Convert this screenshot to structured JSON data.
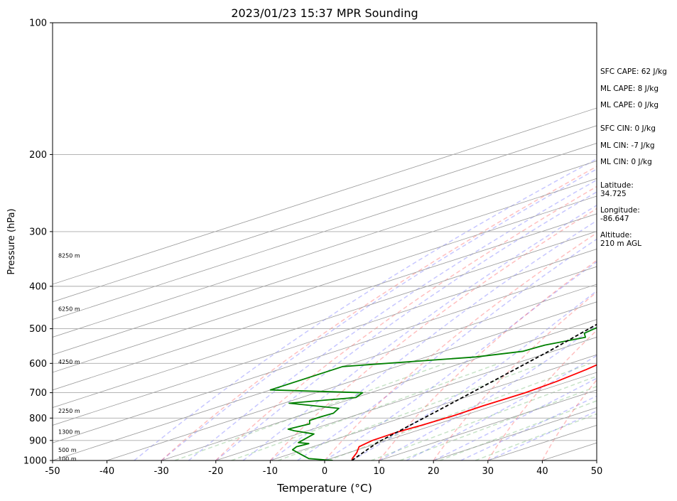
{
  "chart_data": {
    "type": "line",
    "title": "2023/01/23 15:37 MPR Sounding",
    "xlabel": "Temperature (°C)",
    "ylabel": "Pressure (hPa)",
    "xlim": [
      -50,
      50
    ],
    "ylim": [
      1000,
      100
    ],
    "y_scale": "log",
    "x_ticks": [
      -50,
      -40,
      -30,
      -20,
      -10,
      0,
      10,
      20,
      30,
      40,
      50
    ],
    "y_ticks": [
      100,
      200,
      300,
      400,
      500,
      600,
      700,
      800,
      900,
      1000
    ],
    "grid": true,
    "series": [
      {
        "role": "temperature",
        "color": "#ff0000",
        "points": [
          [
            5,
            1000
          ],
          [
            4,
            990
          ],
          [
            1.5,
            960
          ],
          [
            -1.5,
            930
          ],
          [
            -2.6,
            900
          ],
          [
            -2.8,
            860
          ],
          [
            -2.2,
            830
          ],
          [
            -1.7,
            790
          ],
          [
            -1.9,
            750
          ],
          [
            -1.6,
            700
          ],
          [
            -2.2,
            660
          ],
          [
            -3.5,
            620
          ],
          [
            -5.5,
            580
          ],
          [
            -8,
            530
          ],
          [
            -10.5,
            490
          ],
          [
            -13.5,
            450
          ],
          [
            -15.5,
            415
          ],
          [
            -17.5,
            380
          ],
          [
            -19.4,
            345
          ],
          [
            -20.9,
            315
          ],
          [
            -21.6,
            290
          ],
          [
            -21.8,
            265
          ],
          [
            -21.8,
            255
          ]
        ]
      },
      {
        "role": "dewpoint",
        "color": "#008000",
        "points": [
          [
            1.5,
            1000
          ],
          [
            -4,
            990
          ],
          [
            -7.5,
            970
          ],
          [
            -12,
            945
          ],
          [
            -13,
            930
          ],
          [
            -12.5,
            915
          ],
          [
            -15,
            910
          ],
          [
            -17,
            870
          ],
          [
            -22.5,
            855
          ],
          [
            -24.5,
            848
          ],
          [
            -23.5,
            825
          ],
          [
            -25.5,
            810
          ],
          [
            -25.5,
            795
          ],
          [
            -25.2,
            780
          ],
          [
            -27,
            760
          ],
          [
            -39,
            740
          ],
          [
            -30,
            718
          ],
          [
            -31.5,
            700
          ],
          [
            -50,
            690
          ],
          [
            -50,
            610
          ],
          [
            -31,
            580
          ],
          [
            -25.5,
            563
          ],
          [
            -25,
            545
          ],
          [
            -22,
            523
          ],
          [
            -24.5,
            512
          ],
          [
            -25.5,
            495
          ],
          [
            -19.5,
            475
          ],
          [
            -19,
            460
          ],
          [
            -20,
            448
          ],
          [
            -21.5,
            443
          ],
          [
            -19.5,
            425
          ],
          [
            -21.5,
            400
          ],
          [
            -22,
            385
          ],
          [
            -22.5,
            370
          ],
          [
            -27,
            352
          ],
          [
            -31,
            343
          ],
          [
            -31,
            327
          ],
          [
            -32.5,
            315
          ],
          [
            -37,
            300
          ],
          [
            -44.5,
            285
          ],
          [
            -40.5,
            275
          ],
          [
            -35,
            267
          ],
          [
            -39,
            260
          ]
        ]
      },
      {
        "role": "parcel",
        "color": "#000000",
        "points": [
          [
            5,
            1000
          ],
          [
            -0.5,
            910
          ],
          [
            -8,
            760
          ],
          [
            -14,
            660
          ],
          [
            -21,
            560
          ],
          [
            -29,
            470
          ],
          [
            -37,
            395
          ],
          [
            -44,
            325
          ],
          [
            -49.5,
            260
          ]
        ]
      }
    ],
    "height_labels": [
      {
        "label": "100 m",
        "pressure": 990
      },
      {
        "label": "500 m",
        "pressure": 945
      },
      {
        "label": "1300 m",
        "pressure": 860
      },
      {
        "label": "2250 m",
        "pressure": 770
      },
      {
        "label": "4250 m",
        "pressure": 595
      },
      {
        "label": "6250 m",
        "pressure": 450
      },
      {
        "label": "8250 m",
        "pressure": 340
      }
    ],
    "dry_adiabat_thetas_c": [
      -30,
      -20,
      -10,
      0,
      10,
      20,
      30,
      40,
      50,
      60,
      70,
      80,
      90,
      100,
      110,
      120,
      130,
      140,
      150,
      160
    ],
    "moist_adiabat_temps_c": [
      -35,
      -30,
      -25,
      -20,
      -15,
      -10,
      -5,
      0,
      5,
      10,
      15,
      20,
      25,
      30
    ],
    "mixing_ratios_gkg": [
      0.4,
      1,
      2,
      4,
      7,
      10,
      16,
      24
    ],
    "colors": {
      "isotherm": "#999999",
      "dry_adiabat": "#ff0000",
      "moist_adiabat": "#0000ff",
      "mixing_ratio": "#008000"
    }
  },
  "info": {
    "sfc_cape": "SFC CAPE: 62 J/kg",
    "ml_cape_1": "ML CAPE: 8 J/kg",
    "ml_cape_2": "ML CAPE: 0 J/kg",
    "sfc_cin": "SFC CIN: 0 J/kg",
    "ml_cin_1": "ML CIN: -7 J/kg",
    "ml_cin_2": "ML CIN: 0 J/kg",
    "latitude_label": "Latitude:",
    "latitude_value": "34.725",
    "longitude_label": "Longitude:",
    "longitude_value": "-86.647",
    "altitude_label": "Altitude:",
    "altitude_value": "210 m AGL"
  }
}
